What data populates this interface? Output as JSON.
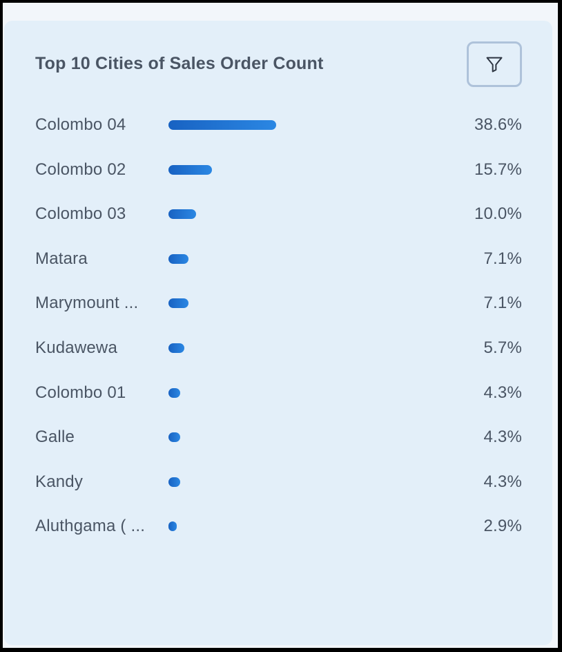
{
  "widget": {
    "title": "Top 10 Cities of Sales Order Count",
    "filter_icon": "filter-funnel-icon"
  },
  "chart_data": {
    "type": "bar",
    "orientation": "horizontal",
    "title": "Top 10 Cities of Sales Order Count",
    "categories": [
      "Colombo 04",
      "Colombo 02",
      "Colombo 03",
      "Matara",
      "Marymount ...",
      "Kudawewa",
      "Colombo 01",
      "Galle",
      "Kandy",
      "Aluthgama ( ..."
    ],
    "values": [
      38.6,
      15.7,
      10.0,
      7.1,
      7.1,
      5.7,
      4.3,
      4.3,
      4.3,
      2.9
    ],
    "value_labels": [
      "38.6%",
      "15.7%",
      "10.0%",
      "7.1%",
      "7.1%",
      "5.7%",
      "4.3%",
      "4.3%",
      "4.3%",
      "2.9%"
    ],
    "unit": "%",
    "xlim": [
      0,
      100
    ],
    "colors": {
      "bar_start": "#1862c2",
      "bar_end": "#2b87e3",
      "text": "#4a5564",
      "background": "#e3eff9"
    }
  }
}
